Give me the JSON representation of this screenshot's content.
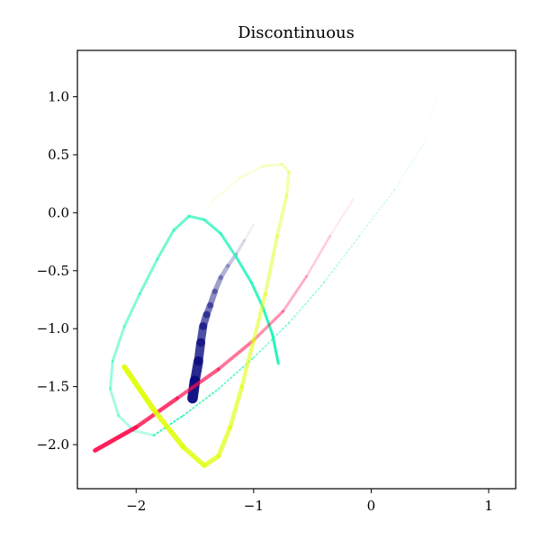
{
  "chart_data": {
    "type": "scatter",
    "title": "Discontinuous",
    "xlabel": "",
    "ylabel": "",
    "xlim": [
      -2.5,
      1.23
    ],
    "ylim": [
      -2.38,
      1.4
    ],
    "xticks": [
      -2,
      -1,
      0,
      1
    ],
    "xtick_labels": [
      "−2",
      "−1",
      "0",
      "1"
    ],
    "yticks": [
      1.0,
      0.5,
      0.0,
      -0.5,
      -1.0,
      -1.5,
      -2.0
    ],
    "ytick_labels": [
      "1.0",
      "0.5",
      "0.0",
      "−0.5",
      "−1.0",
      "−1.5",
      "−2.0"
    ],
    "grid": false,
    "series": [
      {
        "color": "#0a0a80",
        "fade": "end",
        "width_start": 12,
        "width_end": 2,
        "points": [
          [
            -1.52,
            -1.6
          ],
          [
            -1.5,
            -1.45
          ],
          [
            -1.47,
            -1.28
          ],
          [
            -1.45,
            -1.12
          ],
          [
            -1.43,
            -0.98
          ],
          [
            -1.4,
            -0.88
          ],
          [
            -1.37,
            -0.8
          ],
          [
            -1.33,
            -0.68
          ],
          [
            -1.28,
            -0.56
          ],
          [
            -1.22,
            -0.46
          ],
          [
            -1.15,
            -0.36
          ],
          [
            -1.08,
            -0.24
          ],
          [
            -1.0,
            -0.1
          ]
        ]
      },
      {
        "color": "#20f5b8",
        "fade": "start",
        "width_start": 3,
        "width_end": 3,
        "points": [
          [
            -1.85,
            -1.92
          ],
          [
            -2.02,
            -1.88
          ],
          [
            -2.15,
            -1.75
          ],
          [
            -2.22,
            -1.52
          ],
          [
            -2.2,
            -1.28
          ],
          [
            -2.1,
            -0.98
          ],
          [
            -1.97,
            -0.7
          ],
          [
            -1.82,
            -0.4
          ],
          [
            -1.68,
            -0.15
          ],
          [
            -1.55,
            -0.03
          ],
          [
            -1.42,
            -0.06
          ],
          [
            -1.28,
            -0.18
          ],
          [
            -1.15,
            -0.38
          ],
          [
            -1.02,
            -0.6
          ],
          [
            -0.92,
            -0.82
          ],
          [
            -0.84,
            -1.05
          ],
          [
            -0.79,
            -1.3
          ]
        ]
      },
      {
        "color": "#20f5b8",
        "fade": "end",
        "dotted": true,
        "width_start": 2,
        "width_end": 1,
        "points": [
          [
            -1.85,
            -1.92
          ],
          [
            -1.6,
            -1.75
          ],
          [
            -1.3,
            -1.52
          ],
          [
            -1.0,
            -1.25
          ],
          [
            -0.7,
            -0.95
          ],
          [
            -0.4,
            -0.6
          ],
          [
            -0.1,
            -0.2
          ],
          [
            0.2,
            0.2
          ],
          [
            0.45,
            0.6
          ],
          [
            0.6,
            1.15
          ]
        ]
      },
      {
        "color": "#ff1050",
        "fade": "end",
        "width_start": 5,
        "width_end": 2,
        "points": [
          [
            -2.35,
            -2.05
          ],
          [
            -2.0,
            -1.85
          ],
          [
            -1.65,
            -1.6
          ],
          [
            -1.3,
            -1.35
          ],
          [
            -1.0,
            -1.1
          ],
          [
            -0.75,
            -0.85
          ],
          [
            -0.55,
            -0.55
          ],
          [
            -0.35,
            -0.2
          ],
          [
            -0.15,
            0.12
          ]
        ]
      },
      {
        "color": "#e0ff10",
        "fade": "end",
        "width_start": 6,
        "width_end": 2,
        "points": [
          [
            -2.1,
            -1.33
          ],
          [
            -1.85,
            -1.7
          ],
          [
            -1.6,
            -2.02
          ],
          [
            -1.42,
            -2.18
          ],
          [
            -1.3,
            -2.1
          ],
          [
            -1.2,
            -1.85
          ],
          [
            -1.1,
            -1.5
          ],
          [
            -1.0,
            -1.1
          ],
          [
            -0.9,
            -0.7
          ],
          [
            -0.8,
            -0.2
          ],
          [
            -0.72,
            0.15
          ],
          [
            -0.7,
            0.35
          ],
          [
            -0.76,
            0.42
          ],
          [
            -0.92,
            0.4
          ],
          [
            -1.12,
            0.3
          ],
          [
            -1.35,
            0.1
          ],
          [
            -1.4,
            0.0
          ]
        ]
      }
    ]
  }
}
